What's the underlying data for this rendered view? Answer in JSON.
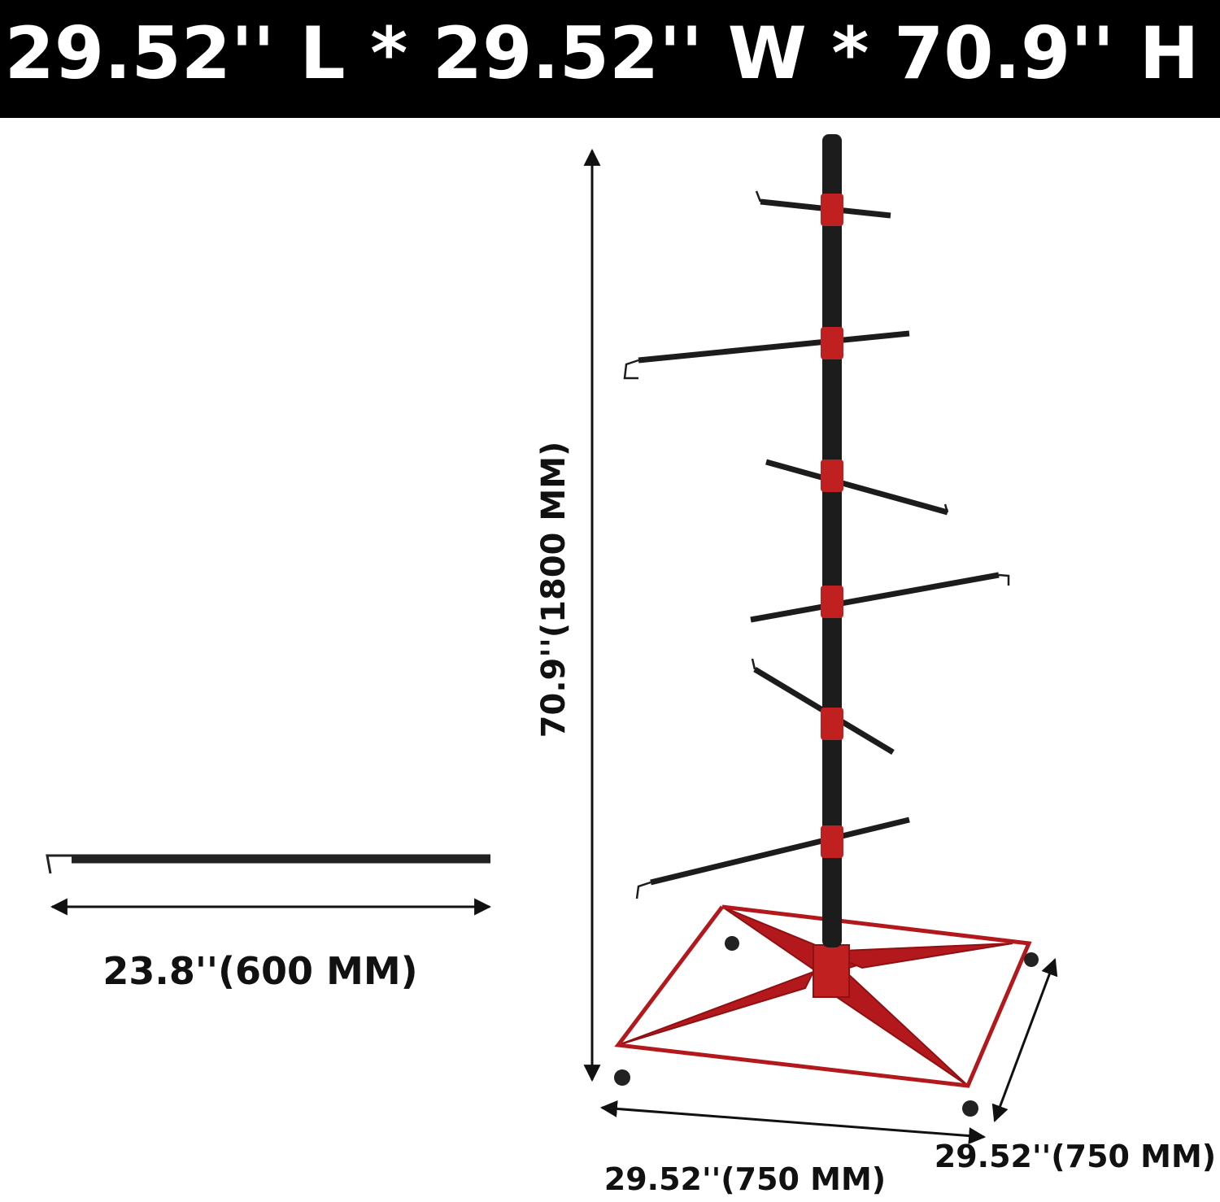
{
  "header": {
    "title": "29.52'' L * 29.52'' W * 70.9'' H"
  },
  "dimensions": {
    "height": "70.9''(1800 MM)",
    "arm_length": "23.8''(600 MM)",
    "width": "29.52''(750 MM)",
    "depth": "29.52''(750 MM)"
  }
}
